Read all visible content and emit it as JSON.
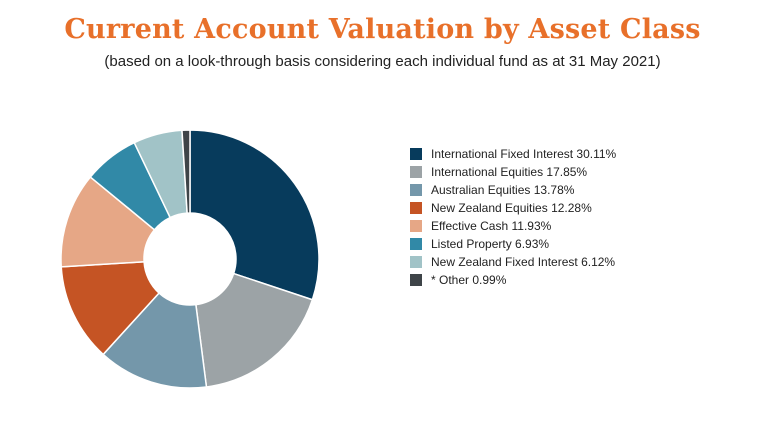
{
  "chart_data": {
    "type": "pie",
    "title": "Current Account Valuation by Asset Class",
    "subtitle": "(based on a look-through basis considering each individual fund as at 31 May 2021)",
    "donut": true,
    "start_angle_deg": 0,
    "direction": "clockwise",
    "legend_placement": "right",
    "slices": [
      {
        "label": "International Fixed Interest 30.11%",
        "value": 30.11,
        "color": "#073b5c"
      },
      {
        "label": "International Equities 17.85%",
        "value": 17.85,
        "color": "#9ca3a6"
      },
      {
        "label": "Australian Equities 13.78%",
        "value": 13.78,
        "color": "#7497aa"
      },
      {
        "label": "New Zealand Equities 12.28%",
        "value": 12.28,
        "color": "#c55424"
      },
      {
        "label": "Effective Cash 11.93%",
        "value": 11.93,
        "color": "#e6a786"
      },
      {
        "label": "Listed Property 6.93%",
        "value": 6.93,
        "color": "#3189a7"
      },
      {
        "label": "New Zealand Fixed Interest 6.12%",
        "value": 6.12,
        "color": "#a1c3c7"
      },
      {
        "label": "* Other 0.99%",
        "value": 0.99,
        "color": "#3e4448"
      }
    ]
  }
}
